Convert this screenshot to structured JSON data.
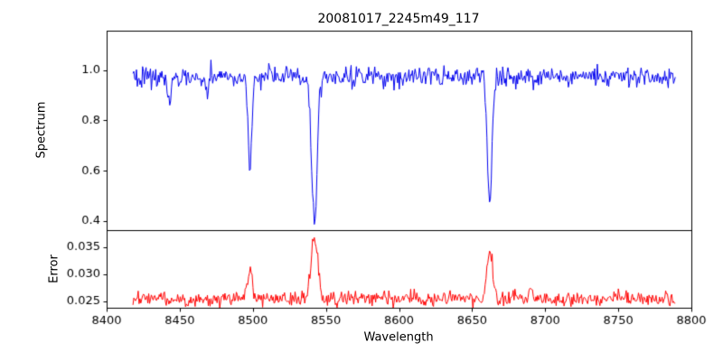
{
  "chart_data": {
    "type": "line",
    "title": "20081017_2245m49_117",
    "xlabel": "Wavelength",
    "x_range": [
      8400,
      8800
    ],
    "x_data_range": [
      8418,
      8789
    ],
    "x_ticks": {
      "values": [
        8400,
        8450,
        8500,
        8550,
        8600,
        8650,
        8700,
        8750,
        8800
      ],
      "labels": [
        "8400",
        "8450",
        "8500",
        "8550",
        "8600",
        "8650",
        "8700",
        "8750",
        "8800"
      ]
    },
    "n_points": 620,
    "seed": 20081017,
    "panels": [
      {
        "name": "spectrum",
        "ylabel": "Spectrum",
        "color": "#0000ee",
        "ylim": [
          0.364,
          1.156
        ],
        "y_ticks": {
          "values": [
            0.4,
            0.6,
            0.8,
            1.0
          ],
          "labels": [
            "0.4",
            "0.6",
            "0.8",
            "1.0"
          ]
        },
        "continuum": 0.972,
        "noise_std": 0.02,
        "absorption_lines": [
          {
            "center": 8498.0,
            "depth": 0.38,
            "sigma": 1.3
          },
          {
            "center": 8542.1,
            "depth": 0.575,
            "sigma": 1.9
          },
          {
            "center": 8662.1,
            "depth": 0.52,
            "sigma": 1.6
          },
          {
            "center": 8443.0,
            "depth": 0.1,
            "sigma": 1.2
          },
          {
            "center": 8468.5,
            "depth": 0.055,
            "sigma": 1.0
          }
        ]
      },
      {
        "name": "error",
        "ylabel": "Error",
        "color": "#ff0000",
        "ylim": [
          0.0238,
          0.0382
        ],
        "y_ticks": {
          "values": [
            0.025,
            0.03,
            0.035
          ],
          "labels": [
            "0.025",
            "0.030",
            "0.035"
          ]
        },
        "baseline": 0.0255,
        "noise_std": 0.0007,
        "peaks": [
          {
            "center": 8498.0,
            "amplitude": 0.006,
            "sigma": 1.5
          },
          {
            "center": 8542.1,
            "amplitude": 0.0115,
            "sigma": 2.2
          },
          {
            "center": 8662.1,
            "amplitude": 0.0095,
            "sigma": 1.9
          },
          {
            "center": 8690.0,
            "amplitude": 0.0018,
            "sigma": 1.2
          }
        ]
      }
    ]
  }
}
